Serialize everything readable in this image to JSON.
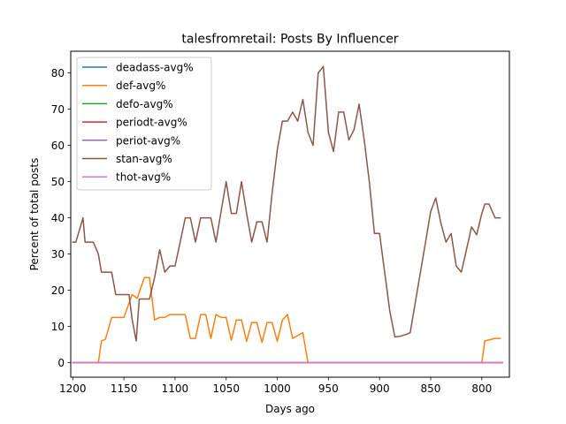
{
  "chart_data": {
    "type": "line",
    "title": "talesfromretail: Posts By Influencer",
    "xlabel": "Days ago",
    "ylabel": "Percent of total posts",
    "xlim": [
      1202,
      773
    ],
    "ylim": [
      -4,
      86
    ],
    "x_reversed": true,
    "xticks": [
      1200,
      1150,
      1100,
      1050,
      1000,
      950,
      900,
      850,
      800
    ],
    "yticks": [
      0,
      10,
      20,
      30,
      40,
      50,
      60,
      70,
      80
    ],
    "grid": false,
    "legend_position": "upper-left",
    "series": [
      {
        "name": "deadass-avg%",
        "color": "#1f77b4",
        "x": [
          1200,
          780
        ],
        "y": [
          0,
          0
        ]
      },
      {
        "name": "def-avg%",
        "color": "#ff7f0e",
        "x": [
          1200,
          1175,
          1172,
          1168,
          1162,
          1155,
          1150,
          1142,
          1137,
          1130,
          1125,
          1120,
          1115,
          1110,
          1105,
          1100,
          1095,
          1090,
          1085,
          1080,
          1075,
          1070,
          1065,
          1060,
          1055,
          1050,
          1045,
          1040,
          1035,
          1030,
          1025,
          1020,
          1015,
          1010,
          1005,
          1000,
          995,
          990,
          985,
          980,
          975,
          970,
          965,
          800,
          797,
          793,
          787,
          782
        ],
        "y": [
          0,
          0,
          6,
          6.5,
          12.5,
          12.5,
          12.5,
          18.8,
          17.8,
          23.5,
          23.5,
          11.8,
          12.5,
          12.5,
          13.3,
          13.3,
          13.3,
          13.3,
          6.7,
          6.7,
          13.3,
          13.3,
          6.7,
          13.3,
          12.5,
          12.5,
          6.2,
          11.8,
          11.8,
          5.9,
          11.1,
          11.1,
          5.6,
          11.1,
          11.1,
          5.9,
          11.8,
          13.3,
          6.7,
          7.5,
          8.3,
          0,
          0,
          0,
          6,
          6.3,
          6.7,
          6.7
        ]
      },
      {
        "name": "defo-avg%",
        "color": "#2ca02c",
        "x": [
          1200,
          780
        ],
        "y": [
          0,
          0
        ]
      },
      {
        "name": "periodt-avg%",
        "color": "#d62728",
        "x": [
          1200,
          780
        ],
        "y": [
          0,
          0
        ]
      },
      {
        "name": "periot-avg%",
        "color": "#9467bd",
        "x": [
          1200,
          780
        ],
        "y": [
          0,
          0
        ]
      },
      {
        "name": "stan-avg%",
        "color": "#8c564b",
        "x": [
          1200,
          1197,
          1190,
          1188,
          1185,
          1180,
          1175,
          1172,
          1168,
          1162,
          1158,
          1155,
          1150,
          1145,
          1142,
          1138,
          1135,
          1130,
          1125,
          1120,
          1115,
          1110,
          1105,
          1100,
          1095,
          1090,
          1085,
          1080,
          1075,
          1070,
          1065,
          1060,
          1055,
          1050,
          1045,
          1040,
          1035,
          1030,
          1025,
          1020,
          1015,
          1010,
          1005,
          1000,
          995,
          990,
          985,
          980,
          975,
          970,
          965,
          960,
          955,
          950,
          945,
          940,
          935,
          930,
          925,
          920,
          915,
          910,
          905,
          900,
          895,
          890,
          885,
          880,
          875,
          870,
          865,
          860,
          855,
          850,
          845,
          840,
          835,
          830,
          825,
          820,
          815,
          810,
          805,
          800,
          797,
          793,
          787,
          782
        ],
        "y": [
          33.3,
          33.3,
          40,
          33.3,
          33.3,
          33.3,
          30,
          25,
          25,
          25,
          18.8,
          18.8,
          18.8,
          18.8,
          12,
          6,
          17.6,
          17.6,
          17.6,
          23.5,
          31.2,
          25,
          26.7,
          26.7,
          33.3,
          40,
          40,
          33.3,
          40,
          40,
          40,
          33.3,
          41.7,
          50,
          41.2,
          41.2,
          50,
          41.2,
          33.3,
          38.9,
          38.9,
          33.3,
          47,
          58.8,
          66.7,
          66.7,
          69.2,
          66.7,
          72.7,
          63.6,
          60,
          80,
          81.8,
          63.6,
          58.3,
          69.2,
          69.2,
          61.5,
          64.3,
          71.4,
          61.5,
          50,
          35.7,
          35.7,
          25,
          14.3,
          7.1,
          7.3,
          7.7,
          8.3,
          16.7,
          25,
          33.3,
          41.7,
          45.5,
          38.5,
          33.3,
          35.7,
          26.7,
          25,
          31.2,
          37.5,
          35.3,
          41.2,
          43.8,
          43.8,
          40,
          40
        ]
      },
      {
        "name": "thot-avg%",
        "color": "#e377c2",
        "x": [
          1200,
          780
        ],
        "y": [
          0,
          0
        ]
      }
    ]
  }
}
